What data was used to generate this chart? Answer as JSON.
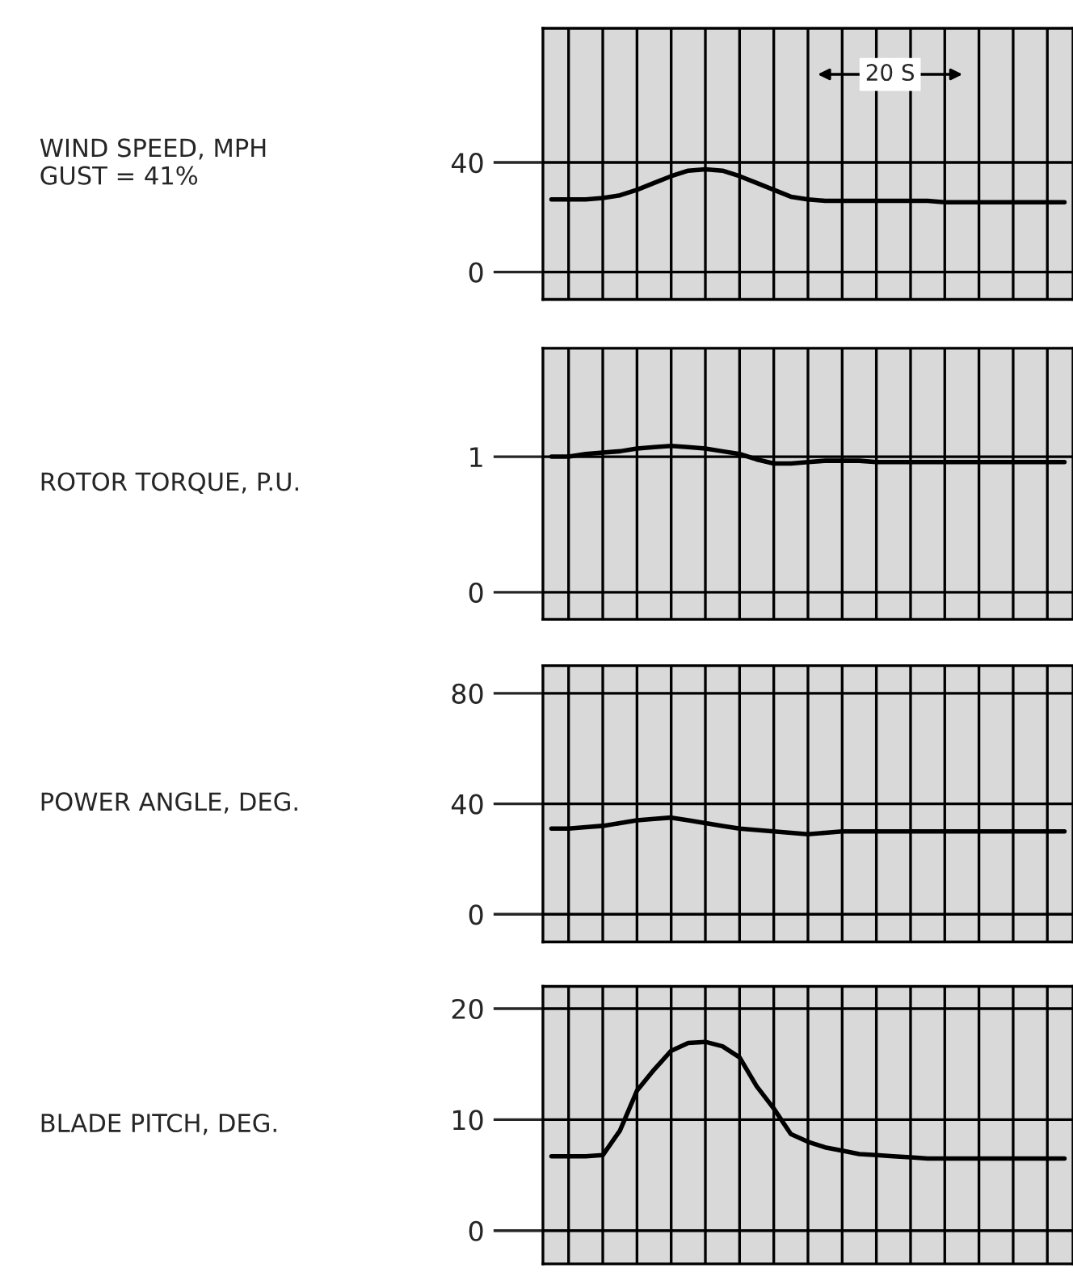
{
  "chart_data": [
    {
      "type": "line",
      "ylabel": "WIND SPEED, MPH\nGUST = 41%",
      "annotations": [
        "20 S"
      ],
      "categories": [
        null,
        null,
        null,
        null,
        null,
        null,
        null,
        null,
        null,
        null,
        null,
        null,
        null,
        null,
        null,
        null,
        null,
        null,
        null,
        null,
        null,
        null,
        null,
        null,
        null,
        null,
        null,
        null,
        null,
        null,
        null
      ],
      "series": [
        {
          "color": "#000000",
          "values": [
            26.5,
            26.5,
            26.5,
            27,
            28,
            30,
            32.5,
            35,
            37,
            37.5,
            37,
            35,
            32.5,
            30,
            27.5,
            26.5,
            26,
            26,
            26,
            26,
            26,
            26,
            26,
            25.5,
            25.5,
            25.5,
            25.5,
            25.5,
            25.5,
            25.5,
            25.5
          ]
        }
      ],
      "ylim": [
        -10,
        89
      ],
      "yticks": [
        0,
        40
      ],
      "grid": true,
      "tick_labels": "y"
    },
    {
      "type": "line",
      "ylabel": "ROTOR TORQUE, P.U.",
      "categories": [
        null,
        null,
        null,
        null,
        null,
        null,
        null,
        null,
        null,
        null,
        null,
        null,
        null,
        null,
        null,
        null,
        null,
        null,
        null,
        null,
        null,
        null,
        null,
        null,
        null,
        null,
        null,
        null,
        null,
        null,
        null
      ],
      "series": [
        {
          "color": "#000000",
          "values": [
            1.0,
            1.0,
            1.02,
            1.03,
            1.04,
            1.06,
            1.07,
            1.08,
            1.07,
            1.06,
            1.04,
            1.02,
            0.98,
            0.95,
            0.95,
            0.96,
            0.97,
            0.97,
            0.97,
            0.96,
            0.96,
            0.96,
            0.96,
            0.96,
            0.96,
            0.96,
            0.96,
            0.96,
            0.96,
            0.96,
            0.96
          ]
        }
      ],
      "ylim": [
        -0.2,
        1.8
      ],
      "yticks": [
        0,
        1
      ],
      "grid": true,
      "tick_labels": "y"
    },
    {
      "type": "line",
      "ylabel": "POWER ANGLE, DEG.",
      "categories": [
        null,
        null,
        null,
        null,
        null,
        null,
        null,
        null,
        null,
        null,
        null,
        null,
        null,
        null,
        null,
        null,
        null,
        null,
        null,
        null,
        null,
        null,
        null,
        null,
        null,
        null,
        null,
        null,
        null,
        null,
        null
      ],
      "series": [
        {
          "color": "#000000",
          "values": [
            31,
            31,
            31.5,
            32,
            33,
            34,
            34.5,
            35,
            34,
            33,
            32,
            31,
            30.5,
            30,
            29.5,
            29,
            29.5,
            30,
            30,
            30,
            30,
            30,
            30,
            30,
            30,
            30,
            30,
            30,
            30,
            30,
            30
          ]
        }
      ],
      "ylim": [
        -10,
        90
      ],
      "yticks": [
        0,
        40,
        80
      ],
      "grid": true,
      "tick_labels": "y"
    },
    {
      "type": "line",
      "ylabel": "BLADE PITCH, DEG.",
      "categories": [
        null,
        null,
        null,
        null,
        null,
        null,
        null,
        null,
        null,
        null,
        null,
        null,
        null,
        null,
        null,
        null,
        null,
        null,
        null,
        null,
        null,
        null,
        null,
        null,
        null,
        null,
        null,
        null,
        null,
        null,
        null
      ],
      "series": [
        {
          "color": "#000000",
          "values": [
            6.7,
            6.7,
            6.7,
            6.8,
            9,
            12.6,
            14.5,
            16.2,
            16.9,
            17,
            16.6,
            15.6,
            13,
            11,
            8.7,
            8,
            7.5,
            7.2,
            6.9,
            6.8,
            6.7,
            6.6,
            6.5,
            6.5,
            6.5,
            6.5,
            6.5,
            6.5,
            6.5,
            6.5,
            6.5
          ]
        }
      ],
      "ylim": [
        -3,
        22
      ],
      "yticks": [
        0,
        10,
        20
      ],
      "grid": true,
      "tick_labels": "y"
    }
  ]
}
